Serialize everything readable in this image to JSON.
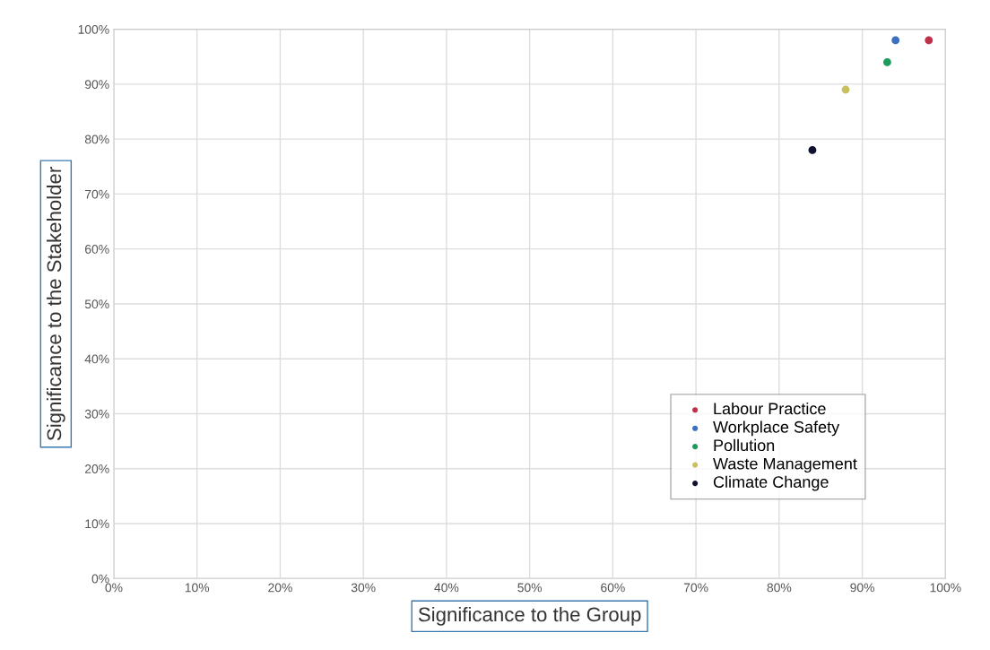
{
  "chart_data": {
    "type": "scatter",
    "xlabel": "Significance to the Group",
    "ylabel": "Significance to the Stakeholder",
    "series": [
      {
        "name": "Labour Practice",
        "color": "#c0304a",
        "x": [
          98
        ],
        "values": [
          98
        ]
      },
      {
        "name": "Workplace Safety",
        "color": "#3c6fc0",
        "x": [
          94
        ],
        "values": [
          98
        ]
      },
      {
        "name": "Pollution",
        "color": "#1e9a5a",
        "x": [
          93
        ],
        "values": [
          94
        ]
      },
      {
        "name": "Waste Management",
        "color": "#c8c060",
        "x": [
          88
        ],
        "values": [
          89
        ]
      },
      {
        "name": "Climate Change",
        "color": "#101030",
        "x": [
          84
        ],
        "values": [
          78
        ]
      }
    ],
    "xlim": [
      0,
      100
    ],
    "ylim": [
      0,
      100
    ],
    "xticks": [
      {
        "value": 0,
        "label": "0%"
      },
      {
        "value": 10,
        "label": "10%"
      },
      {
        "value": 20,
        "label": "20%"
      },
      {
        "value": 30,
        "label": "30%"
      },
      {
        "value": 40,
        "label": "40%"
      },
      {
        "value": 50,
        "label": "50%"
      },
      {
        "value": 60,
        "label": "60%"
      },
      {
        "value": 70,
        "label": "70%"
      },
      {
        "value": 80,
        "label": "80%"
      },
      {
        "value": 90,
        "label": "90%"
      },
      {
        "value": 100,
        "label": "100%"
      }
    ],
    "yticks": [
      {
        "value": 0,
        "label": "0%"
      },
      {
        "value": 10,
        "label": "10%"
      },
      {
        "value": 20,
        "label": "20%"
      },
      {
        "value": 30,
        "label": "30%"
      },
      {
        "value": 40,
        "label": "40%"
      },
      {
        "value": 50,
        "label": "50%"
      },
      {
        "value": 60,
        "label": "60%"
      },
      {
        "value": 70,
        "label": "70%"
      },
      {
        "value": 80,
        "label": "80%"
      },
      {
        "value": 90,
        "label": "90%"
      },
      {
        "value": 100,
        "label": "100%"
      }
    ],
    "grid": true,
    "legend": "bottom right",
    "marker": "circle"
  }
}
